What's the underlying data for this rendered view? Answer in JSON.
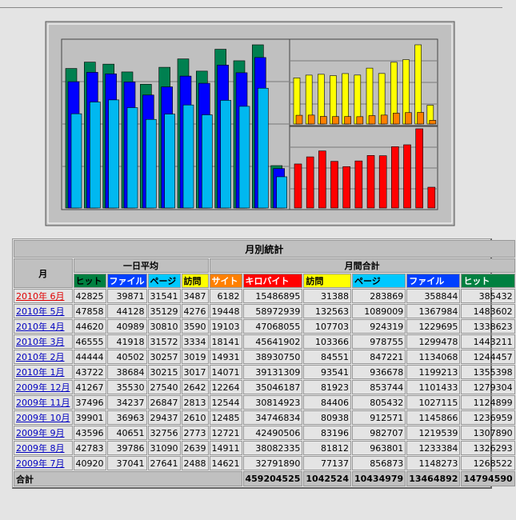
{
  "table": {
    "title": "月別統計",
    "month_header": "月",
    "groups": [
      "一日平均",
      "月間合計"
    ],
    "columns": [
      "ヒット",
      "ファイル",
      "ページ",
      "訪問",
      "サイト",
      "キロバイト",
      "訪問",
      "ページ",
      "ファイル",
      "ヒット"
    ],
    "rows": [
      {
        "month": "2010年 6月",
        "values": [
          42825,
          39871,
          31541,
          3487,
          6182,
          15486895,
          31388,
          283869,
          358844,
          385432
        ]
      },
      {
        "month": "2010年 5月",
        "values": [
          47858,
          44128,
          35129,
          4276,
          19448,
          58972939,
          132563,
          1089009,
          1367984,
          1483602
        ]
      },
      {
        "month": "2010年 4月",
        "values": [
          44620,
          40989,
          30810,
          3590,
          19103,
          47068055,
          107703,
          924319,
          1229695,
          1338623
        ]
      },
      {
        "month": "2010年 3月",
        "values": [
          46555,
          41918,
          31572,
          3334,
          18141,
          45641902,
          103366,
          978755,
          1299478,
          1443211
        ]
      },
      {
        "month": "2010年 2月",
        "values": [
          44444,
          40502,
          30257,
          3019,
          14931,
          38930750,
          84551,
          847221,
          1134068,
          1244457
        ]
      },
      {
        "month": "2010年 1月",
        "values": [
          43722,
          38684,
          30215,
          3017,
          14071,
          39131309,
          93541,
          936678,
          1199213,
          1355398
        ]
      },
      {
        "month": "2009年 12月",
        "values": [
          41267,
          35530,
          27540,
          2642,
          12264,
          35046187,
          81923,
          853744,
          1101433,
          1279304
        ]
      },
      {
        "month": "2009年 11月",
        "values": [
          37496,
          34237,
          26847,
          2813,
          12544,
          30814923,
          84406,
          805432,
          1027115,
          1124899
        ]
      },
      {
        "month": "2009年 10月",
        "values": [
          39901,
          36963,
          29437,
          2610,
          12485,
          34746834,
          80938,
          912571,
          1145866,
          1236959
        ]
      },
      {
        "month": "2009年 9月",
        "values": [
          43596,
          40651,
          32756,
          2773,
          12721,
          42490506,
          83196,
          982707,
          1219539,
          1307890
        ]
      },
      {
        "month": "2009年 8月",
        "values": [
          42783,
          39786,
          31090,
          2639,
          14911,
          38082335,
          81812,
          963801,
          1233384,
          1326293
        ]
      },
      {
        "month": "2009年 7月",
        "values": [
          40920,
          37041,
          27641,
          2488,
          14621,
          32791890,
          77137,
          856873,
          1148273,
          1268522
        ]
      }
    ],
    "total": {
      "label": "合計",
      "values": [
        459204525,
        1042524,
        10434979,
        13464892,
        14794590
      ]
    }
  }
}
